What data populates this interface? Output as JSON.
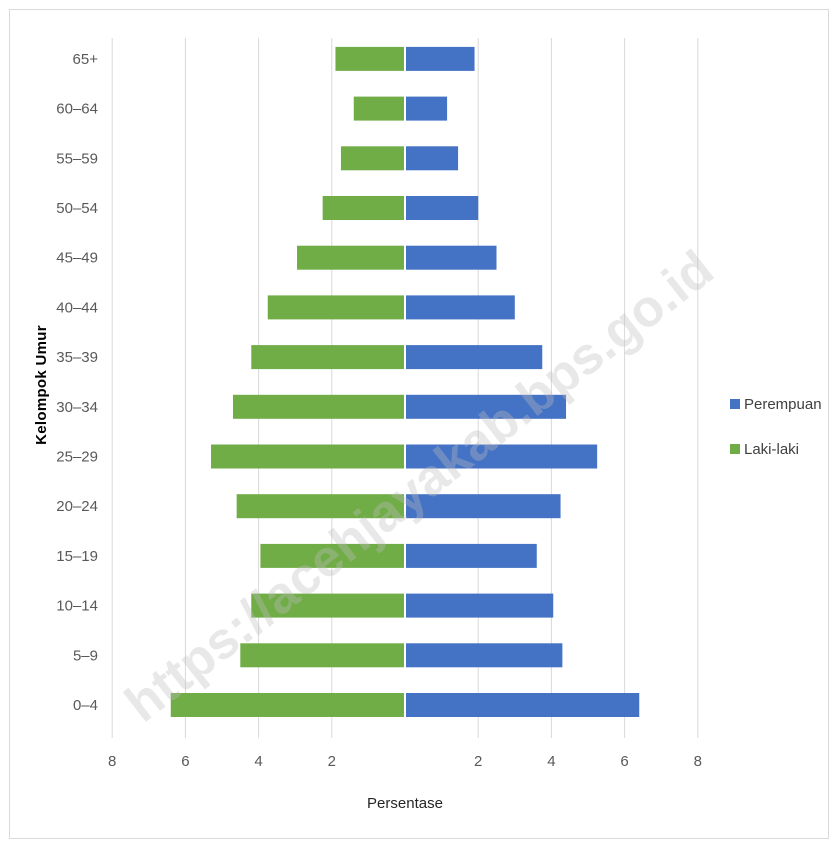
{
  "chart_data": {
    "type": "bar",
    "orientation": "horizontal-population-pyramid",
    "ylabel": "Kelompok Umur",
    "xlabel": "Persentase",
    "categories": [
      "0–4",
      "5–9",
      "10–14",
      "15–19",
      "20–24",
      "25–29",
      "30–34",
      "35–39",
      "40–44",
      "45–49",
      "50–54",
      "55–59",
      "60–64",
      "65+"
    ],
    "x_ticks": [
      "8",
      "6",
      "4",
      "2",
      "",
      "2",
      "4",
      "6",
      "8"
    ],
    "xlim": [
      -8,
      8
    ],
    "grid": true,
    "legend_position": "right",
    "series": [
      {
        "name": "Perempuan",
        "color": "#4472c4",
        "side": "right",
        "values": [
          6.4,
          4.3,
          4.05,
          3.6,
          4.25,
          5.25,
          4.4,
          3.75,
          3.0,
          2.5,
          2.0,
          1.45,
          1.15,
          1.9
        ]
      },
      {
        "name": "Laki-laki",
        "color": "#70ad47",
        "side": "left",
        "values": [
          6.4,
          4.5,
          4.2,
          3.95,
          4.6,
          5.3,
          4.7,
          4.2,
          3.75,
          2.95,
          2.25,
          1.75,
          1.4,
          1.9
        ]
      }
    ]
  },
  "watermark": "https://acehjayakab.bps.go.id"
}
